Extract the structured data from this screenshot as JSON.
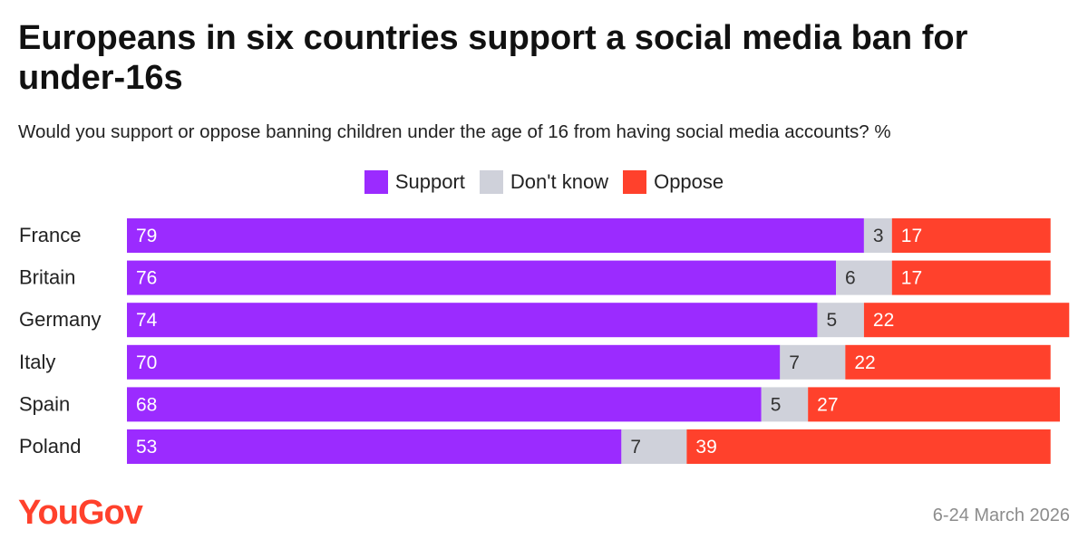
{
  "title": "Europeans in six countries support a social media ban for under-16s",
  "subtitle": "Would you support or oppose banning children under the age of 16 from having social media accounts? %",
  "legend": [
    "Support",
    "Don't know",
    "Oppose"
  ],
  "colors": {
    "support": "#9b2bff",
    "dont_know": "#cfd1da",
    "oppose": "#ff412c"
  },
  "brand": "YouGov",
  "date": "6-24 March 2026",
  "chart_data": {
    "type": "bar",
    "orientation": "horizontal",
    "stacked": true,
    "title": "Europeans in six countries support a social media ban for under-16s",
    "subtitle": "Would you support or oppose banning children under the age of 16 from having social media accounts? %",
    "categories": [
      "France",
      "Britain",
      "Germany",
      "Italy",
      "Spain",
      "Poland"
    ],
    "series": [
      {
        "name": "Support",
        "values": [
          79,
          76,
          74,
          70,
          68,
          53
        ]
      },
      {
        "name": "Don't know",
        "values": [
          3,
          6,
          5,
          7,
          5,
          7
        ]
      },
      {
        "name": "Oppose",
        "values": [
          17,
          17,
          22,
          22,
          27,
          39
        ]
      }
    ],
    "xlim": [
      0,
      100
    ],
    "legend_position": "top-center",
    "grid": false,
    "data_labels": true
  }
}
